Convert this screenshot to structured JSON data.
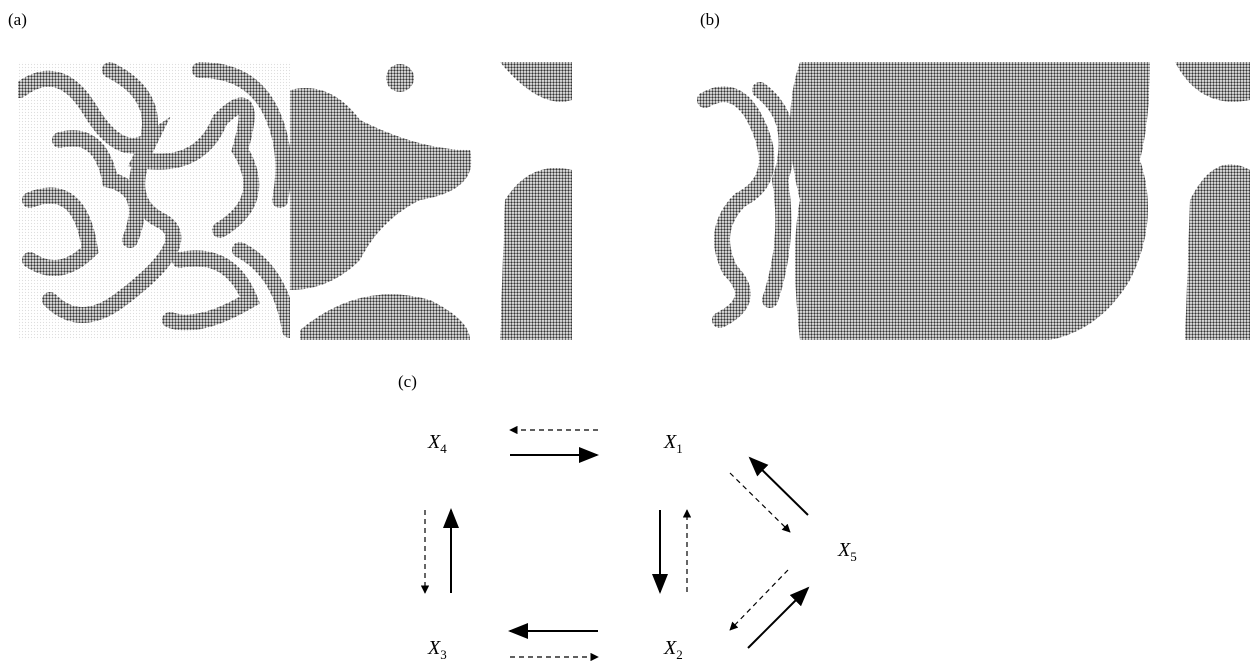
{
  "panels": [
    {
      "label": "(a)"
    },
    {
      "label": "(b)"
    }
  ],
  "diagram": {
    "label": "(c)",
    "nodes": [
      {
        "symbol": "X",
        "index": "4"
      },
      {
        "symbol": "X",
        "index": "1"
      },
      {
        "symbol": "X",
        "index": "5"
      },
      {
        "symbol": "X",
        "index": "3"
      },
      {
        "symbol": "X",
        "index": "2"
      }
    ]
  }
}
